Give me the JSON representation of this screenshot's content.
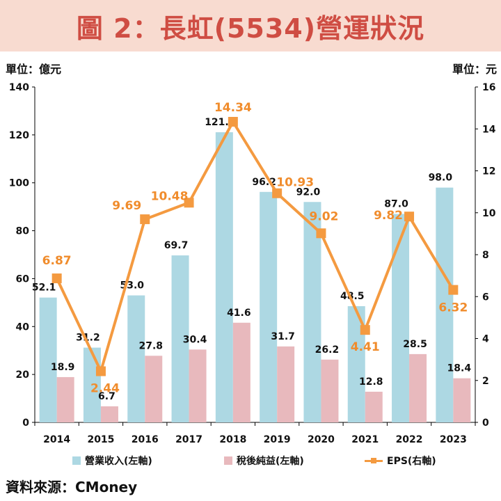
{
  "header": {
    "title": "圖 2：長虹(5534)營運狀況"
  },
  "units": {
    "left": "單位：億元",
    "right": "單位：元"
  },
  "source": "資料來源：CMoney",
  "colors": {
    "banner_bg": "#f8dbd0",
    "title": "#cf4d43",
    "revenue": "#add8e3",
    "net_income": "#e8b9bd",
    "eps": "#f49a40",
    "eps_label": "#f08c2c",
    "axis": "#000000"
  },
  "chart_data": {
    "type": "bar",
    "categories": [
      "2014",
      "2015",
      "2016",
      "2017",
      "2018",
      "2019",
      "2020",
      "2021",
      "2022",
      "2023"
    ],
    "series": [
      {
        "name": "營業收入(左軸)",
        "axis": "left",
        "kind": "bar",
        "values": [
          52.1,
          31.2,
          53.0,
          69.7,
          121.1,
          96.2,
          92.0,
          48.5,
          87.0,
          98.0
        ],
        "labels": [
          "52.1",
          "31.2",
          "53.0",
          "69.7",
          "121.1",
          "96.2",
          "92.0",
          "48.5",
          "87.0",
          "98.0"
        ]
      },
      {
        "name": "稅後純益(左軸)",
        "axis": "left",
        "kind": "bar",
        "values": [
          18.9,
          6.7,
          27.8,
          30.4,
          41.6,
          31.7,
          26.2,
          12.8,
          28.5,
          18.4
        ],
        "labels": [
          "18.9",
          "6.7",
          "27.8",
          "30.4",
          "41.6",
          "31.7",
          "26.2",
          "12.8",
          "28.5",
          "18.4"
        ]
      },
      {
        "name": "EPS(右軸)",
        "axis": "right",
        "kind": "line",
        "values": [
          6.87,
          2.44,
          9.69,
          10.48,
          14.34,
          10.93,
          9.02,
          4.41,
          9.82,
          6.32
        ],
        "labels": [
          "6.87",
          "2.44",
          "9.69",
          "10.48",
          "14.34",
          "10.93",
          "9.02",
          "4.41",
          "9.82",
          "6.32"
        ]
      }
    ],
    "y_left": {
      "min": 0,
      "max": 140,
      "ticks": [
        0,
        20,
        40,
        60,
        80,
        100,
        120,
        140
      ]
    },
    "y_right": {
      "min": 0,
      "max": 16,
      "ticks": [
        0,
        2,
        4,
        6,
        8,
        10,
        12,
        14,
        16
      ]
    },
    "grid": false,
    "legend": "bottom"
  }
}
